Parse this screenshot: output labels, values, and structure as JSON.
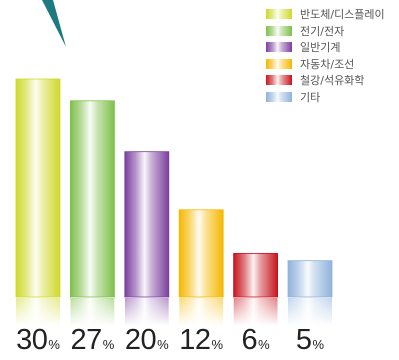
{
  "chart_data": {
    "type": "bar",
    "categories": [
      "반도체/디스플레이",
      "전기/전자",
      "일반기계",
      "자동차/조선",
      "철강/석유화학",
      "기타"
    ],
    "values": [
      30,
      27,
      20,
      12,
      6,
      5
    ],
    "value_labels": [
      "30",
      "27",
      "20",
      "12",
      "6",
      "5"
    ],
    "unit": "%",
    "title": "",
    "xlabel": "",
    "ylabel": "",
    "ylim": [
      0,
      30
    ],
    "grid": false,
    "legend_position": "top-right",
    "colors": [
      "#cfd92a",
      "#7fc04b",
      "#7b3f9e",
      "#f5b800",
      "#c8141e",
      "#8fb2dc"
    ],
    "accent_color": "#1e7a80"
  }
}
